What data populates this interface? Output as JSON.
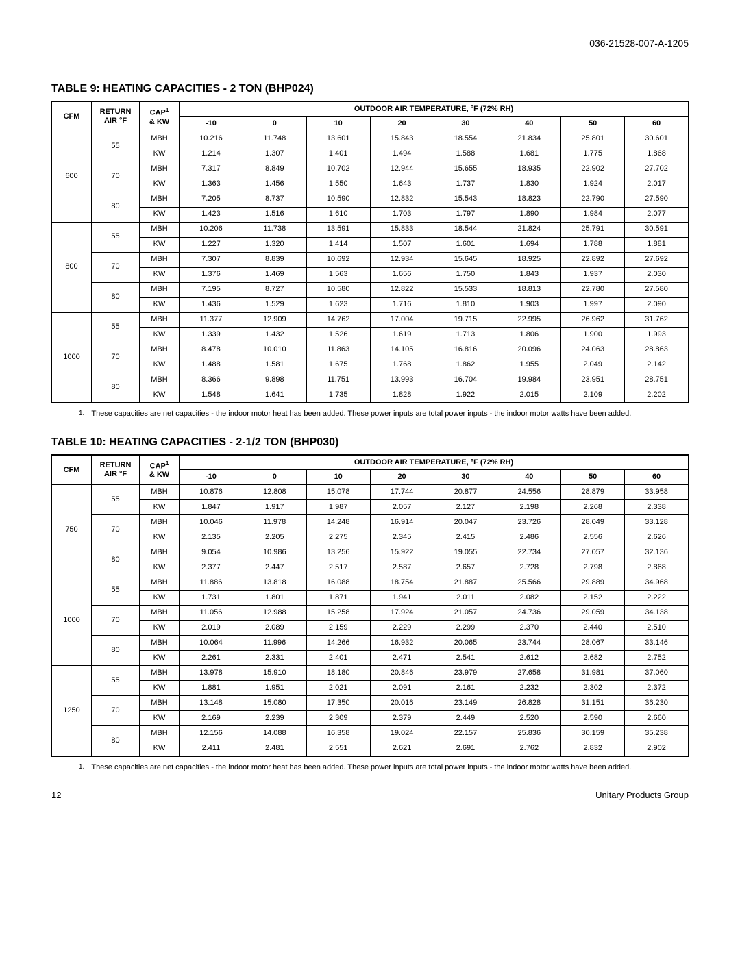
{
  "document_id": "036-21528-007-A-1205",
  "page_number": "12",
  "footer_text": "Unitary Products Group",
  "footnote_text": "These capacities are net capacities - the indoor motor heat has been added. These power inputs are total power inputs - the indoor motor watts have been added.",
  "header_cfm": "CFM",
  "header_return1": "RETURN",
  "header_return2": "AIR °F",
  "header_cap1": "CAP",
  "header_cap2": "& KW",
  "header_outdoor": "OUTDOOR AIR TEMPERATURE, °F (72% RH)",
  "temps": [
    "-10",
    "0",
    "10",
    "20",
    "30",
    "40",
    "50",
    "60"
  ],
  "table9": {
    "title": "TABLE 9: HEATING CAPACITIES - 2 TON (BHP024)",
    "blocks": [
      {
        "cfm": "600",
        "groups": [
          {
            "ret": "55",
            "rows": [
              {
                "m": "MBH",
                "v": [
                  "10.216",
                  "11.748",
                  "13.601",
                  "15.843",
                  "18.554",
                  "21.834",
                  "25.801",
                  "30.601"
                ]
              },
              {
                "m": "KW",
                "v": [
                  "1.214",
                  "1.307",
                  "1.401",
                  "1.494",
                  "1.588",
                  "1.681",
                  "1.775",
                  "1.868"
                ]
              }
            ]
          },
          {
            "ret": "70",
            "rows": [
              {
                "m": "MBH",
                "v": [
                  "7.317",
                  "8.849",
                  "10.702",
                  "12.944",
                  "15.655",
                  "18.935",
                  "22.902",
                  "27.702"
                ]
              },
              {
                "m": "KW",
                "v": [
                  "1.363",
                  "1.456",
                  "1.550",
                  "1.643",
                  "1.737",
                  "1.830",
                  "1.924",
                  "2.017"
                ]
              }
            ]
          },
          {
            "ret": "80",
            "rows": [
              {
                "m": "MBH",
                "v": [
                  "7.205",
                  "8.737",
                  "10.590",
                  "12.832",
                  "15.543",
                  "18.823",
                  "22.790",
                  "27.590"
                ]
              },
              {
                "m": "KW",
                "v": [
                  "1.423",
                  "1.516",
                  "1.610",
                  "1.703",
                  "1.797",
                  "1.890",
                  "1.984",
                  "2.077"
                ]
              }
            ]
          }
        ]
      },
      {
        "cfm": "800",
        "groups": [
          {
            "ret": "55",
            "rows": [
              {
                "m": "MBH",
                "v": [
                  "10.206",
                  "11.738",
                  "13.591",
                  "15.833",
                  "18.544",
                  "21.824",
                  "25.791",
                  "30.591"
                ]
              },
              {
                "m": "KW",
                "v": [
                  "1.227",
                  "1.320",
                  "1.414",
                  "1.507",
                  "1.601",
                  "1.694",
                  "1.788",
                  "1.881"
                ]
              }
            ]
          },
          {
            "ret": "70",
            "rows": [
              {
                "m": "MBH",
                "v": [
                  "7.307",
                  "8.839",
                  "10.692",
                  "12.934",
                  "15.645",
                  "18.925",
                  "22.892",
                  "27.692"
                ]
              },
              {
                "m": "KW",
                "v": [
                  "1.376",
                  "1.469",
                  "1.563",
                  "1.656",
                  "1.750",
                  "1.843",
                  "1.937",
                  "2.030"
                ]
              }
            ]
          },
          {
            "ret": "80",
            "rows": [
              {
                "m": "MBH",
                "v": [
                  "7.195",
                  "8.727",
                  "10.580",
                  "12.822",
                  "15.533",
                  "18.813",
                  "22.780",
                  "27.580"
                ]
              },
              {
                "m": "KW",
                "v": [
                  "1.436",
                  "1.529",
                  "1.623",
                  "1.716",
                  "1.810",
                  "1.903",
                  "1.997",
                  "2.090"
                ]
              }
            ]
          }
        ]
      },
      {
        "cfm": "1000",
        "groups": [
          {
            "ret": "55",
            "rows": [
              {
                "m": "MBH",
                "v": [
                  "11.377",
                  "12.909",
                  "14.762",
                  "17.004",
                  "19.715",
                  "22.995",
                  "26.962",
                  "31.762"
                ]
              },
              {
                "m": "KW",
                "v": [
                  "1.339",
                  "1.432",
                  "1.526",
                  "1.619",
                  "1.713",
                  "1.806",
                  "1.900",
                  "1.993"
                ]
              }
            ]
          },
          {
            "ret": "70",
            "rows": [
              {
                "m": "MBH",
                "v": [
                  "8.478",
                  "10.010",
                  "11.863",
                  "14.105",
                  "16.816",
                  "20.096",
                  "24.063",
                  "28.863"
                ]
              },
              {
                "m": "KW",
                "v": [
                  "1.488",
                  "1.581",
                  "1.675",
                  "1.768",
                  "1.862",
                  "1.955",
                  "2.049",
                  "2.142"
                ]
              }
            ]
          },
          {
            "ret": "80",
            "rows": [
              {
                "m": "MBH",
                "v": [
                  "8.366",
                  "9.898",
                  "11.751",
                  "13.993",
                  "16.704",
                  "19.984",
                  "23.951",
                  "28.751"
                ]
              },
              {
                "m": "KW",
                "v": [
                  "1.548",
                  "1.641",
                  "1.735",
                  "1.828",
                  "1.922",
                  "2.015",
                  "2.109",
                  "2.202"
                ]
              }
            ]
          }
        ]
      }
    ]
  },
  "table10": {
    "title": "TABLE 10: HEATING CAPACITIES - 2-1/2 TON (BHP030)",
    "blocks": [
      {
        "cfm": "750",
        "groups": [
          {
            "ret": "55",
            "rows": [
              {
                "m": "MBH",
                "v": [
                  "10.876",
                  "12.808",
                  "15.078",
                  "17.744",
                  "20.877",
                  "24.556",
                  "28.879",
                  "33.958"
                ]
              },
              {
                "m": "KW",
                "v": [
                  "1.847",
                  "1.917",
                  "1.987",
                  "2.057",
                  "2.127",
                  "2.198",
                  "2.268",
                  "2.338"
                ]
              }
            ]
          },
          {
            "ret": "70",
            "rows": [
              {
                "m": "MBH",
                "v": [
                  "10.046",
                  "11.978",
                  "14.248",
                  "16.914",
                  "20.047",
                  "23.726",
                  "28.049",
                  "33.128"
                ]
              },
              {
                "m": "KW",
                "v": [
                  "2.135",
                  "2.205",
                  "2.275",
                  "2.345",
                  "2.415",
                  "2.486",
                  "2.556",
                  "2.626"
                ]
              }
            ]
          },
          {
            "ret": "80",
            "rows": [
              {
                "m": "MBH",
                "v": [
                  "9.054",
                  "10.986",
                  "13.256",
                  "15.922",
                  "19.055",
                  "22.734",
                  "27.057",
                  "32.136"
                ]
              },
              {
                "m": "KW",
                "v": [
                  "2.377",
                  "2.447",
                  "2.517",
                  "2.587",
                  "2.657",
                  "2.728",
                  "2.798",
                  "2.868"
                ]
              }
            ]
          }
        ]
      },
      {
        "cfm": "1000",
        "groups": [
          {
            "ret": "55",
            "rows": [
              {
                "m": "MBH",
                "v": [
                  "11.886",
                  "13.818",
                  "16.088",
                  "18.754",
                  "21.887",
                  "25.566",
                  "29.889",
                  "34.968"
                ]
              },
              {
                "m": "KW",
                "v": [
                  "1.731",
                  "1.801",
                  "1.871",
                  "1.941",
                  "2.011",
                  "2.082",
                  "2.152",
                  "2.222"
                ]
              }
            ]
          },
          {
            "ret": "70",
            "rows": [
              {
                "m": "MBH",
                "v": [
                  "11.056",
                  "12.988",
                  "15.258",
                  "17.924",
                  "21.057",
                  "24.736",
                  "29.059",
                  "34.138"
                ]
              },
              {
                "m": "KW",
                "v": [
                  "2.019",
                  "2.089",
                  "2.159",
                  "2.229",
                  "2.299",
                  "2.370",
                  "2.440",
                  "2.510"
                ]
              }
            ]
          },
          {
            "ret": "80",
            "rows": [
              {
                "m": "MBH",
                "v": [
                  "10.064",
                  "11.996",
                  "14.266",
                  "16.932",
                  "20.065",
                  "23.744",
                  "28.067",
                  "33.146"
                ]
              },
              {
                "m": "KW",
                "v": [
                  "2.261",
                  "2.331",
                  "2.401",
                  "2.471",
                  "2.541",
                  "2.612",
                  "2.682",
                  "2.752"
                ]
              }
            ]
          }
        ]
      },
      {
        "cfm": "1250",
        "groups": [
          {
            "ret": "55",
            "rows": [
              {
                "m": "MBH",
                "v": [
                  "13.978",
                  "15.910",
                  "18.180",
                  "20.846",
                  "23.979",
                  "27.658",
                  "31.981",
                  "37.060"
                ]
              },
              {
                "m": "KW",
                "v": [
                  "1.881",
                  "1.951",
                  "2.021",
                  "2.091",
                  "2.161",
                  "2.232",
                  "2.302",
                  "2.372"
                ]
              }
            ]
          },
          {
            "ret": "70",
            "rows": [
              {
                "m": "MBH",
                "v": [
                  "13.148",
                  "15.080",
                  "17.350",
                  "20.016",
                  "23.149",
                  "26.828",
                  "31.151",
                  "36.230"
                ]
              },
              {
                "m": "KW",
                "v": [
                  "2.169",
                  "2.239",
                  "2.309",
                  "2.379",
                  "2.449",
                  "2.520",
                  "2.590",
                  "2.660"
                ]
              }
            ]
          },
          {
            "ret": "80",
            "rows": [
              {
                "m": "MBH",
                "v": [
                  "12.156",
                  "14.088",
                  "16.358",
                  "19.024",
                  "22.157",
                  "25.836",
                  "30.159",
                  "35.238"
                ]
              },
              {
                "m": "KW",
                "v": [
                  "2.411",
                  "2.481",
                  "2.551",
                  "2.621",
                  "2.691",
                  "2.762",
                  "2.832",
                  "2.902"
                ]
              }
            ]
          }
        ]
      }
    ]
  }
}
